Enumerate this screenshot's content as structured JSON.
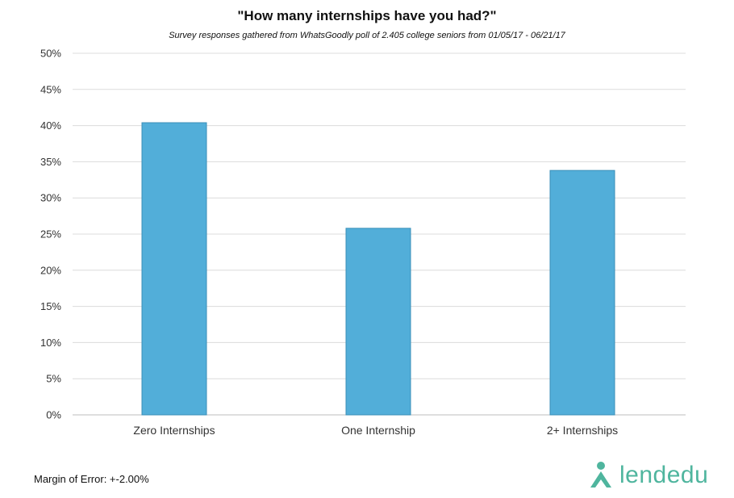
{
  "chart_data": {
    "type": "bar",
    "title": "\"How many internships have you had?\"",
    "subtitle": "Survey responses gathered from WhatsGoodly poll of 2.405 college seniors from 01/05/17 - 06/21/17",
    "categories": [
      "Zero Internships",
      "One Internship",
      "2+ Internships"
    ],
    "values": [
      40.4,
      25.8,
      33.8
    ],
    "ylim": [
      0,
      50
    ],
    "yticks": [
      0,
      5,
      10,
      15,
      20,
      25,
      30,
      35,
      40,
      45,
      50
    ],
    "ytick_labels": [
      "0%",
      "5%",
      "10%",
      "15%",
      "20%",
      "25%",
      "30%",
      "35%",
      "40%",
      "45%",
      "50%"
    ],
    "xlabel": "",
    "ylabel": "",
    "grid": true,
    "bar_color": "#52aed9",
    "bar_edge_color": "#3a8fb8"
  },
  "footer": {
    "margin_of_error": "Margin of Error: +-2.00%"
  },
  "logo": {
    "text": "lendedu",
    "color": "#4fb59e"
  }
}
